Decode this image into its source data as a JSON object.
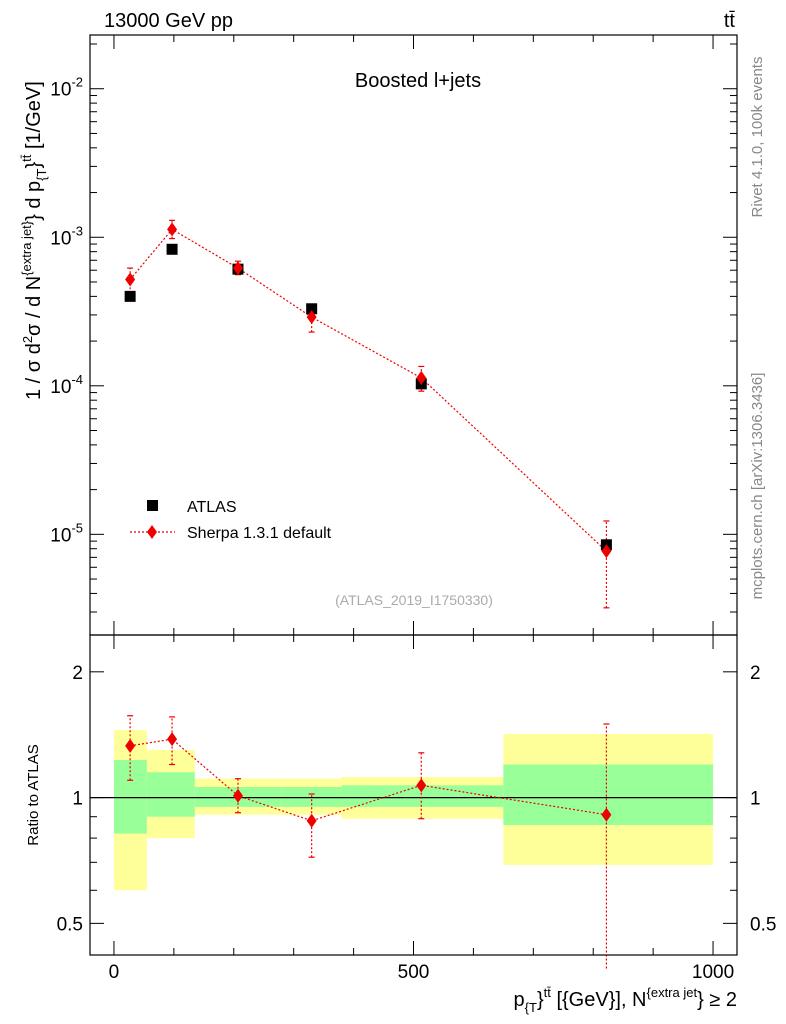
{
  "header": {
    "left_label": "13000 GeV pp",
    "right_label": "tt̄"
  },
  "side_labels": {
    "rivet": "Rivet 4.1.0,  100k events",
    "mcplots": "mcplots.cern.ch [arXiv:1306.3436]"
  },
  "colors": {
    "atlas": "#000000",
    "sherpa": "#ee0000",
    "band_inner": "#99ff99",
    "band_outer": "#ffff99"
  },
  "chart_data": [
    {
      "type": "scatter",
      "title": "Boosted l+jets",
      "watermark": "(ATLAS_2019_I1750330)",
      "ylabel": "1 / σ d²σ / d N^{extra jet} d p_{T}^{tt̄} [1/GeV]",
      "yscale": "log",
      "xlim": [
        -40,
        1040
      ],
      "ylim": [
        2.1e-06,
        0.023
      ],
      "y_ticks": [
        {
          "value": 1e-05,
          "base": "10",
          "exp": "-5"
        },
        {
          "value": 0.0001,
          "base": "10",
          "exp": "-4"
        },
        {
          "value": 0.001,
          "base": "10",
          "exp": "-3"
        },
        {
          "value": 0.01,
          "base": "10",
          "exp": "-2"
        }
      ],
      "legend": [
        "ATLAS",
        "Sherpa 1.3.1 default"
      ],
      "series": [
        {
          "name": "ATLAS",
          "marker": "square",
          "x": [
            27,
            97,
            207,
            330,
            513,
            822
          ],
          "y": [
            0.0004,
            0.00083,
            0.00061,
            0.00033,
            0.000103,
            8.5e-06
          ]
        },
        {
          "name": "Sherpa 1.3.1 default",
          "marker": "diamond",
          "x": [
            27,
            97,
            207,
            330,
            513,
            822
          ],
          "y": [
            0.00052,
            0.00113,
            0.00062,
            0.00029,
            0.000113,
            7.7e-06
          ],
          "y_err_low": [
            0.00042,
            0.00098,
            0.00056,
            0.00023,
            9.2e-05,
            3.2e-06
          ],
          "y_err_high": [
            0.00062,
            0.0013,
            0.00069,
            0.00035,
            0.000135,
            1.23e-05
          ]
        }
      ]
    },
    {
      "type": "scatter",
      "ylabel": "Ratio to ATLAS",
      "xlabel": "p_{T}^{tt̄} [{GeV}], N^{extra jet} ≥ 2",
      "yscale": "log",
      "xlim": [
        -40,
        1040
      ],
      "ylim": [
        0.42,
        2.45
      ],
      "x_ticks": [
        0,
        500,
        1000
      ],
      "y_ticks": [
        0.5,
        1,
        2
      ],
      "bins": [
        {
          "lo": 0,
          "hi": 55,
          "inner": [
            0.82,
            1.23
          ],
          "outer": [
            0.6,
            1.45
          ]
        },
        {
          "lo": 55,
          "hi": 135,
          "inner": [
            0.9,
            1.15
          ],
          "outer": [
            0.8,
            1.3
          ]
        },
        {
          "lo": 135,
          "hi": 280,
          "inner": [
            0.95,
            1.06
          ],
          "outer": [
            0.91,
            1.11
          ]
        },
        {
          "lo": 280,
          "hi": 380,
          "inner": [
            0.95,
            1.06
          ],
          "outer": [
            0.91,
            1.11
          ]
        },
        {
          "lo": 380,
          "hi": 650,
          "inner": [
            0.95,
            1.07
          ],
          "outer": [
            0.89,
            1.12
          ]
        },
        {
          "lo": 650,
          "hi": 1000,
          "inner": [
            0.86,
            1.2
          ],
          "outer": [
            0.69,
            1.42
          ]
        }
      ],
      "series": [
        {
          "name": "Sherpa 1.3.1 default",
          "x": [
            27,
            97,
            207,
            330,
            513,
            822
          ],
          "y": [
            1.33,
            1.38,
            1.01,
            0.88,
            1.07,
            0.91
          ],
          "y_err_low": [
            1.1,
            1.2,
            0.92,
            0.72,
            0.89,
            0.39
          ],
          "y_err_high": [
            1.57,
            1.56,
            1.11,
            1.02,
            1.28,
            1.5
          ]
        }
      ]
    }
  ]
}
